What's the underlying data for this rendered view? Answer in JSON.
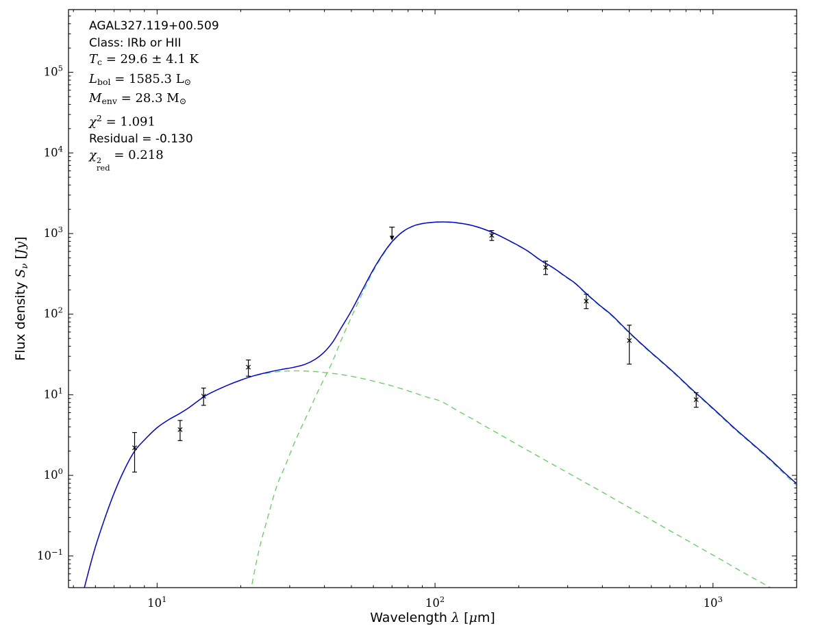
{
  "figure": {
    "background": "#ffffff",
    "frame_color": "#000000",
    "text_color": "#000000"
  },
  "chart_data": {
    "type": "line",
    "title": "",
    "xlabel": "Wavelength λ [μm]",
    "ylabel": "Flux density S_ν [Jy]",
    "xscale": "log",
    "yscale": "log",
    "xlim": [
      4.8,
      2000
    ],
    "ylim": [
      0.0405,
      600000
    ],
    "x_major_ticks": [
      10,
      100,
      1000
    ],
    "y_major_ticks": [
      0.1,
      1,
      10,
      100,
      1000,
      10000,
      100000
    ],
    "grid": false,
    "legend": "none",
    "xlabel_segments": [
      {
        "t": "Wavelength ",
        "f": "sans"
      },
      {
        "t": "λ",
        "f": "it"
      },
      {
        "t": " [",
        "f": "sans"
      },
      {
        "t": "μ",
        "f": "it"
      },
      {
        "t": "m]",
        "f": "sans"
      }
    ],
    "ylabel_segments": [
      {
        "t": "Flux density ",
        "f": "sans"
      },
      {
        "t": "S",
        "f": "it"
      },
      {
        "t": "ν",
        "f": "it",
        "v": "sub"
      },
      {
        "t": " [",
        "f": "sans"
      },
      {
        "t": "Jy",
        "f": "it"
      },
      {
        "t": "]",
        "f": "sans"
      }
    ],
    "annotation_lines": [
      {
        "font": "sans",
        "segs": [
          {
            "t": "AGAL327.119+00.509"
          }
        ]
      },
      {
        "font": "sans",
        "segs": [
          {
            "t": "Class: IRb or HII"
          }
        ]
      },
      {
        "font": "serif",
        "segs": [
          {
            "t": "T",
            "f": "it"
          },
          {
            "t": "c",
            "v": "sub"
          },
          {
            "t": " = 29.6 ± 4.1 K"
          }
        ]
      },
      {
        "font": "serif",
        "segs": [
          {
            "t": "L",
            "f": "it"
          },
          {
            "t": "bol",
            "v": "sub"
          },
          {
            "t": " = 1585.3 L"
          },
          {
            "t": "⊙",
            "v": "sub"
          }
        ]
      },
      {
        "font": "serif",
        "segs": [
          {
            "t": "M",
            "f": "it"
          },
          {
            "t": "env",
            "v": "sub"
          },
          {
            "t": " = 28.3 M"
          },
          {
            "t": "⊙",
            "v": "sub"
          }
        ]
      },
      {
        "font": "serif",
        "segs": [
          {
            "t": "χ",
            "f": "it"
          },
          {
            "t": "2",
            "v": "sup"
          },
          {
            "t": " = 1.091"
          }
        ]
      },
      {
        "font": "sans",
        "segs": [
          {
            "t": "Residual = -0.130"
          }
        ]
      },
      {
        "font": "serif",
        "segs": [
          {
            "t": "χ",
            "f": "it"
          },
          {
            "t": "2",
            "v": "supsub",
            "sub": "red"
          },
          {
            "t": " = 0.218"
          }
        ]
      }
    ],
    "series": [
      {
        "name": "total-model",
        "color": "#0000e0",
        "style": "solid",
        "points": [
          [
            5.2,
            0.02
          ],
          [
            5.6,
            0.055
          ],
          [
            6.0,
            0.13
          ],
          [
            6.5,
            0.3
          ],
          [
            7.0,
            0.6
          ],
          [
            7.6,
            1.15
          ],
          [
            8.3,
            2.0
          ],
          [
            9.0,
            2.75
          ],
          [
            10,
            3.9
          ],
          [
            11,
            4.9
          ],
          [
            12,
            5.8
          ],
          [
            13,
            6.9
          ],
          [
            14.7,
            9.4
          ],
          [
            16,
            11
          ],
          [
            18,
            13.2
          ],
          [
            20,
            15.2
          ],
          [
            22,
            17
          ],
          [
            25,
            19
          ],
          [
            28,
            20.6
          ],
          [
            31,
            21.9
          ],
          [
            34,
            23.8
          ],
          [
            37,
            27.5
          ],
          [
            40,
            34
          ],
          [
            43,
            46
          ],
          [
            46,
            68
          ],
          [
            50,
            110
          ],
          [
            55,
            205
          ],
          [
            60,
            360
          ],
          [
            65,
            560
          ],
          [
            70,
            790
          ],
          [
            75,
            1000
          ],
          [
            80,
            1160
          ],
          [
            85,
            1270
          ],
          [
            90,
            1330
          ],
          [
            97,
            1375
          ],
          [
            105,
            1395
          ],
          [
            113,
            1385
          ],
          [
            122,
            1350
          ],
          [
            132,
            1290
          ],
          [
            145,
            1180
          ],
          [
            160,
            1040
          ],
          [
            175,
            900
          ],
          [
            195,
            740
          ],
          [
            215,
            610
          ],
          [
            240,
            465
          ],
          [
            265,
            380
          ],
          [
            290,
            305
          ],
          [
            320,
            240
          ],
          [
            350,
            180
          ],
          [
            390,
            130
          ],
          [
            430,
            99
          ],
          [
            480,
            68
          ],
          [
            530,
            49
          ],
          [
            590,
            35
          ],
          [
            660,
            25
          ],
          [
            740,
            17.6
          ],
          [
            830,
            12.1
          ],
          [
            930,
            8.5
          ],
          [
            1050,
            5.8
          ],
          [
            1200,
            3.8
          ],
          [
            1380,
            2.5
          ],
          [
            1600,
            1.6
          ],
          [
            1850,
            1.0
          ],
          [
            2100,
            0.68
          ]
        ]
      },
      {
        "name": "cold-dust-component",
        "color": "#5ecf5e",
        "style": "dashed",
        "points": [
          [
            21,
            0.02
          ],
          [
            23,
            0.1
          ],
          [
            25,
            0.3
          ],
          [
            27,
            0.75
          ],
          [
            29,
            1.35
          ],
          [
            31,
            2.4
          ],
          [
            33,
            3.9
          ],
          [
            35,
            6.0
          ],
          [
            37,
            9.2
          ],
          [
            39,
            13.5
          ],
          [
            41,
            19
          ],
          [
            43,
            27
          ],
          [
            46,
            48
          ],
          [
            50,
            92
          ],
          [
            55,
            187
          ],
          [
            60,
            343
          ],
          [
            65,
            545
          ],
          [
            70,
            777
          ],
          [
            75,
            987
          ],
          [
            80,
            1148
          ],
          [
            85,
            1259
          ],
          [
            90,
            1319
          ],
          [
            97,
            1365
          ],
          [
            105,
            1386
          ],
          [
            113,
            1376
          ],
          [
            122,
            1342
          ],
          [
            132,
            1282
          ],
          [
            145,
            1173
          ],
          [
            160,
            1033
          ],
          [
            175,
            894
          ],
          [
            195,
            734
          ],
          [
            215,
            605
          ],
          [
            240,
            461
          ],
          [
            265,
            376
          ],
          [
            290,
            301
          ],
          [
            320,
            237
          ],
          [
            350,
            177
          ],
          [
            390,
            128
          ],
          [
            430,
            97
          ],
          [
            480,
            66.5
          ],
          [
            530,
            48
          ],
          [
            590,
            34.3
          ],
          [
            660,
            24.5
          ],
          [
            740,
            17.2
          ],
          [
            830,
            11.8
          ],
          [
            930,
            8.3
          ],
          [
            1050,
            5.66
          ],
          [
            1200,
            3.7
          ],
          [
            1380,
            2.44
          ],
          [
            1600,
            1.55
          ],
          [
            1850,
            0.96
          ],
          [
            2100,
            0.64
          ]
        ]
      },
      {
        "name": "warm-dust-component",
        "color": "#5ecf5e",
        "style": "dashed",
        "points": [
          [
            5.2,
            0.02
          ],
          [
            5.6,
            0.055
          ],
          [
            6.0,
            0.13
          ],
          [
            6.5,
            0.3
          ],
          [
            7.0,
            0.6
          ],
          [
            7.6,
            1.15
          ],
          [
            8.3,
            2.0
          ],
          [
            9.0,
            2.75
          ],
          [
            10,
            3.9
          ],
          [
            11,
            4.9
          ],
          [
            12,
            5.8
          ],
          [
            13,
            6.9
          ],
          [
            14.7,
            9.4
          ],
          [
            16,
            11
          ],
          [
            18,
            13.2
          ],
          [
            20,
            15.2
          ],
          [
            22,
            16.9
          ],
          [
            25,
            18.6
          ],
          [
            28,
            19.5
          ],
          [
            31,
            19.8
          ],
          [
            34,
            19.7
          ],
          [
            37,
            19.4
          ],
          [
            40,
            18.9
          ],
          [
            44,
            18.2
          ],
          [
            48,
            17.4
          ],
          [
            53,
            16.3
          ],
          [
            58,
            15.2
          ],
          [
            64,
            14.0
          ],
          [
            70,
            12.9
          ],
          [
            78,
            11.5
          ],
          [
            86,
            10.3
          ],
          [
            95,
            9.2
          ],
          [
            105,
            8.3
          ],
          [
            120,
            6.4
          ],
          [
            135,
            5.1
          ],
          [
            150,
            4.15
          ],
          [
            170,
            3.25
          ],
          [
            200,
            2.36
          ],
          [
            230,
            1.8
          ],
          [
            265,
            1.37
          ],
          [
            300,
            1.08
          ],
          [
            350,
            0.8
          ],
          [
            400,
            0.62
          ],
          [
            460,
            0.47
          ],
          [
            530,
            0.356
          ],
          [
            610,
            0.27
          ],
          [
            700,
            0.206
          ],
          [
            800,
            0.159
          ],
          [
            930,
            0.118
          ],
          [
            1070,
            0.09
          ],
          [
            1230,
            0.068
          ],
          [
            1400,
            0.053
          ],
          [
            1600,
            0.041
          ],
          [
            1750,
            0.034
          ]
        ]
      }
    ],
    "data_points": [
      {
        "wavelength_um": 8.3,
        "flux_jy": 2.2,
        "err_lo": 1.1,
        "err_hi": 1.2
      },
      {
        "wavelength_um": 12.1,
        "flux_jy": 3.7,
        "err_lo": 1.0,
        "err_hi": 1.1
      },
      {
        "wavelength_um": 14.7,
        "flux_jy": 9.6,
        "err_lo": 2.2,
        "err_hi": 2.5
      },
      {
        "wavelength_um": 21.3,
        "flux_jy": 22,
        "err_lo": 5,
        "err_hi": 5
      },
      {
        "wavelength_um": 70,
        "flux_jy": 1200,
        "upper_limit": true,
        "arrow_to": 920
      },
      {
        "wavelength_um": 160,
        "flux_jy": 950,
        "err_lo": 130,
        "err_hi": 140
      },
      {
        "wavelength_um": 250,
        "flux_jy": 380,
        "err_lo": 70,
        "err_hi": 75
      },
      {
        "wavelength_um": 350,
        "flux_jy": 145,
        "err_lo": 28,
        "err_hi": 32
      },
      {
        "wavelength_um": 500,
        "flux_jy": 47,
        "err_lo": 23,
        "err_hi": 26
      },
      {
        "wavelength_um": 870,
        "flux_jy": 8.7,
        "err_lo": 1.7,
        "err_hi": 1.9
      }
    ],
    "marker": {
      "symbol": "x",
      "color": "#000000"
    }
  }
}
